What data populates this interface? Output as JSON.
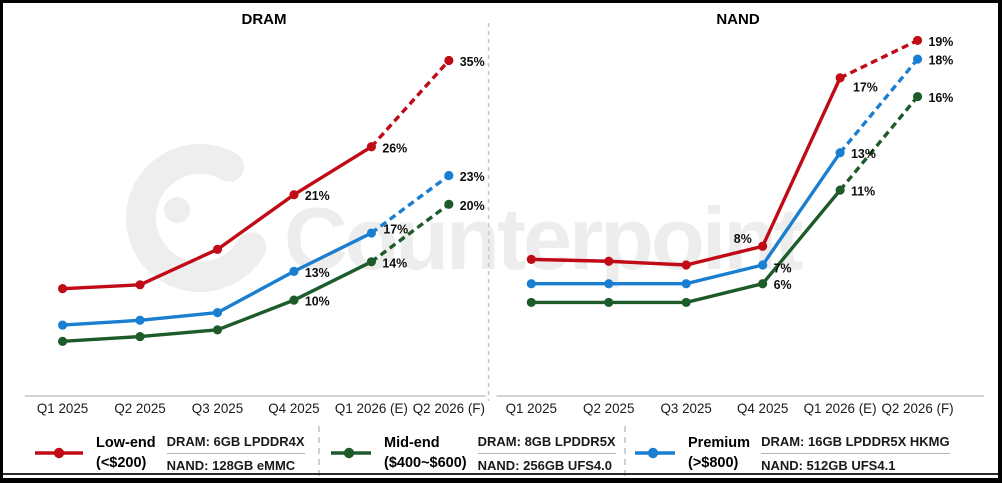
{
  "watermark": {
    "text": "Counterpoint"
  },
  "chart_data": [
    {
      "type": "line",
      "title": "DRAM",
      "categories": [
        "Q1 2025",
        "Q2 2025",
        "Q3 2025",
        "Q4 2025",
        "Q1 2026 (E)",
        "Q2 2026 (F)"
      ],
      "ylim": [
        0,
        41
      ],
      "grid": false,
      "labels_from": 3,
      "forecast_dash_from": 4,
      "series": [
        {
          "name": "Low-end",
          "color": "#c00b16",
          "values": [
            11.2,
            11.6,
            15.3,
            21,
            26,
            35
          ],
          "labels": [
            "",
            "",
            "",
            "21%",
            "26%",
            "35%"
          ]
        },
        {
          "name": "Premium",
          "color": "#1a7ed1",
          "values": [
            7.4,
            7.9,
            8.7,
            13,
            17,
            23
          ],
          "labels": [
            "",
            "",
            "",
            "13%",
            "17%",
            "23%"
          ],
          "label_offsets": {
            "4": [
              12,
              -4
            ]
          }
        },
        {
          "name": "Mid-end",
          "color": "#1e5b2b",
          "values": [
            5.7,
            6.2,
            6.9,
            10,
            14,
            20
          ],
          "labels": [
            "",
            "",
            "",
            "10%",
            "14%",
            "20%"
          ]
        }
      ]
    },
    {
      "type": "line",
      "title": "NAND",
      "categories": [
        "Q1 2025",
        "Q2 2025",
        "Q3 2025",
        "Q4 2025",
        "Q1 2026 (E)",
        "Q2 2026 (F)"
      ],
      "ylim": [
        0,
        21
      ],
      "grid": false,
      "labels_from": 3,
      "forecast_dash_from": 4,
      "series": [
        {
          "name": "Low-end",
          "color": "#c00b16",
          "values": [
            7.3,
            7.2,
            7.0,
            8,
            17,
            19
          ],
          "labels": [
            "",
            "",
            "",
            "8%",
            "17%",
            "19%"
          ],
          "label_offsets": {
            "3": [
              -11,
              -8,
              "end"
            ],
            "4": [
              13,
              9
            ]
          }
        },
        {
          "name": "Premium",
          "color": "#1a7ed1",
          "values": [
            6,
            6,
            6,
            7,
            13,
            18
          ],
          "labels": [
            "",
            "",
            "",
            "7%",
            "13%",
            "18%"
          ],
          "label_offsets": {
            "3": [
              11,
              3
            ]
          }
        },
        {
          "name": "Mid-end",
          "color": "#1e5b2b",
          "values": [
            5,
            5,
            5,
            6,
            11,
            16
          ],
          "labels": [
            "",
            "",
            "",
            "6%",
            "11%",
            "16%"
          ]
        }
      ]
    }
  ],
  "legend": {
    "groups": [
      {
        "tier": "Low-end",
        "range": "(<$200)",
        "color": "#c00b16",
        "dram": "DRAM: 6GB LPDDR4X",
        "nand": "NAND: 128GB eMMC"
      },
      {
        "tier": "Mid-end",
        "range": "($400~$600)",
        "color": "#1e5b2b",
        "dram": "DRAM: 8GB LPDDR5X",
        "nand": "NAND: 256GB UFS4.0"
      },
      {
        "tier": "Premium",
        "range": "(>$800)",
        "color": "#1a7ed1",
        "dram": "DRAM: 16GB LPDDR5X HKMG",
        "nand": "NAND: 512GB UFS4.1"
      }
    ]
  },
  "colors": {
    "low_end": "#c00b16",
    "mid_end": "#1e5b2b",
    "premium": "#1a7ed1",
    "axis_line": "#d4d4d4",
    "panel_divider": "#c9c9c9",
    "watermark": "#ededed"
  }
}
